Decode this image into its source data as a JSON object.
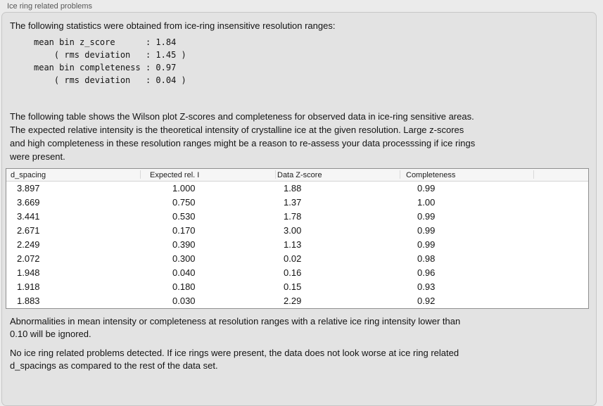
{
  "panel": {
    "title": "Ice ring related problems"
  },
  "intro": {
    "text": "The following statistics were obtained from ice-ring insensitive resolution ranges:",
    "stats_block": "mean bin z_score      : 1.84\n    ( rms deviation   : 1.45 )\nmean bin completeness : 0.97\n    ( rms deviation   : 0.04 )"
  },
  "description": {
    "text": "The following table shows the Wilson plot Z-scores and completeness for observed data in ice-ring sensitive areas.\nThe expected relative intensity is the theoretical intensity of crystalline ice at the given resolution. Large z-scores\nand high completeness in these resolution ranges might be a reason to re-assess your data processsing if ice rings\nwere present."
  },
  "table": {
    "columns": [
      "d_spacing",
      "Expected rel. I",
      "Data Z-score",
      "Completeness",
      ""
    ],
    "rows": [
      [
        "3.897",
        "1.000",
        "1.88",
        "0.99"
      ],
      [
        "3.669",
        "0.750",
        "1.37",
        "1.00"
      ],
      [
        "3.441",
        "0.530",
        "1.78",
        "0.99"
      ],
      [
        "2.671",
        "0.170",
        "3.00",
        "0.99"
      ],
      [
        "2.249",
        "0.390",
        "1.13",
        "0.99"
      ],
      [
        "2.072",
        "0.300",
        "0.02",
        "0.98"
      ],
      [
        "1.948",
        "0.040",
        "0.16",
        "0.96"
      ],
      [
        "1.918",
        "0.180",
        "0.15",
        "0.93"
      ],
      [
        "1.883",
        "0.030",
        "2.29",
        "0.92"
      ]
    ]
  },
  "notes": {
    "ignore_note": "Abnormalities in mean intensity or completeness at resolution ranges with a relative ice ring intensity lower than\n0.10 will be ignored.",
    "conclusion": "No ice ring related problems detected. If ice rings were present, the data does not look worse at ice ring related\nd_spacings as compared to the rest of the data set."
  }
}
